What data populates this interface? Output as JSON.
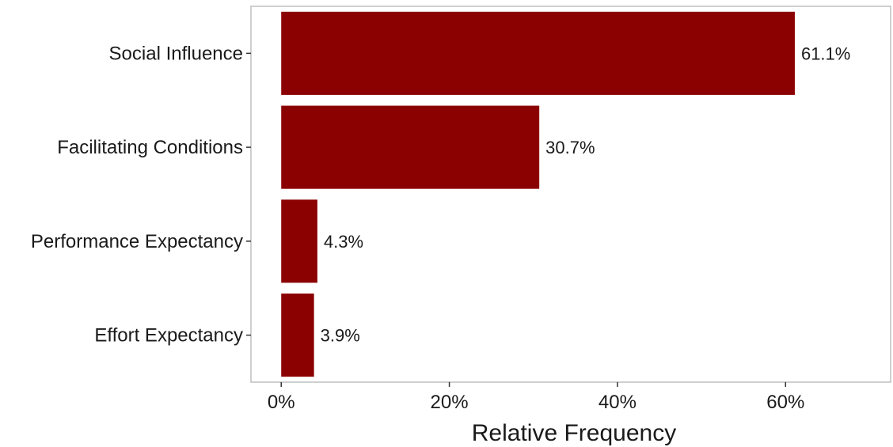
{
  "chart_data": {
    "type": "bar",
    "orientation": "horizontal",
    "title": "",
    "xlabel": "Relative Frequency",
    "ylabel": "",
    "categories": [
      "Social Influence",
      "Facilitating Conditions",
      "Performance Expectancy",
      "Effort Expectancy"
    ],
    "values": [
      61.1,
      30.7,
      4.3,
      3.9
    ],
    "value_labels": [
      "61.1%",
      "30.7%",
      "4.3%",
      "3.9%"
    ],
    "xlim": [
      -3.6,
      72.5
    ],
    "xticks": [
      0,
      20,
      40,
      60
    ],
    "xtick_labels": [
      "0%",
      "20%",
      "40%",
      "60%"
    ],
    "grid": false,
    "legend": "none",
    "bar_color": "#8B0000",
    "panel_border_color": "#bfbfbf"
  }
}
